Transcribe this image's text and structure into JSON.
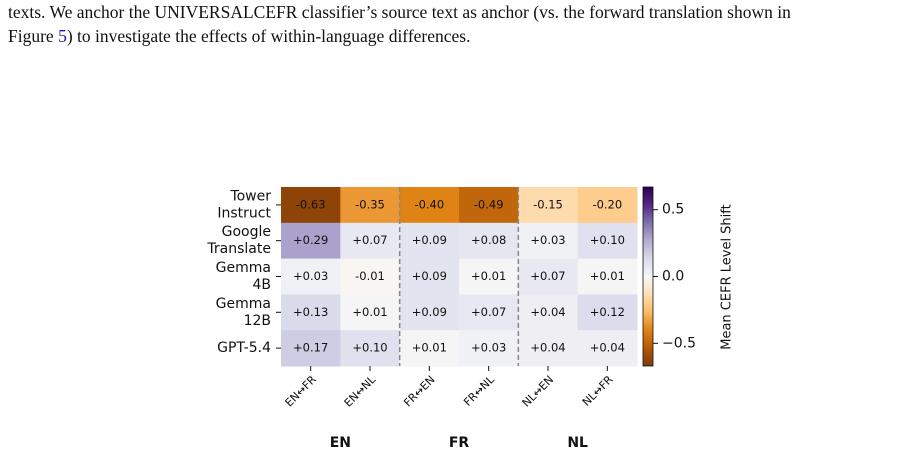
{
  "paragraph": {
    "line1": "texts. We anchor the UNIVERSALCEFR classifier’s source text as anchor (vs. the forward translation shown in",
    "line2_prefix": "Figure ",
    "line2_ref": "5",
    "line2_suffix": ") to investigate the effects of within-language differences."
  },
  "chart_data": {
    "type": "heatmap",
    "rows": [
      [
        "Tower",
        "Instruct"
      ],
      [
        "Google",
        "Translate"
      ],
      [
        "Gemma",
        "4B"
      ],
      [
        "Gemma",
        "12B"
      ],
      [
        "GPT-5.4"
      ]
    ],
    "columns": [
      "EN↔FR",
      "EN↔NL",
      "FR↔EN",
      "FR↔NL",
      "NL↔EN",
      "NL↔FR"
    ],
    "groups": [
      "EN",
      "FR",
      "NL"
    ],
    "values": [
      [
        -0.63,
        -0.35,
        -0.4,
        -0.49,
        -0.15,
        -0.2
      ],
      [
        0.29,
        0.07,
        0.09,
        0.08,
        0.03,
        0.1
      ],
      [
        0.03,
        -0.01,
        0.09,
        0.01,
        0.07,
        0.01
      ],
      [
        0.13,
        0.01,
        0.09,
        0.07,
        0.04,
        0.12
      ],
      [
        0.17,
        0.1,
        0.01,
        0.03,
        0.04,
        0.04
      ]
    ],
    "value_labels": [
      [
        "-0.63",
        "-0.35",
        "-0.40",
        "-0.49",
        "-0.15",
        "-0.20"
      ],
      [
        "+0.29",
        "+0.07",
        "+0.09",
        "+0.08",
        "+0.03",
        "+0.10"
      ],
      [
        "+0.03",
        "-0.01",
        "+0.09",
        "+0.01",
        "+0.07",
        "+0.01"
      ],
      [
        "+0.13",
        "+0.01",
        "+0.09",
        "+0.07",
        "+0.04",
        "+0.12"
      ],
      [
        "+0.17",
        "+0.10",
        "+0.01",
        "+0.03",
        "+0.04",
        "+0.04"
      ]
    ],
    "clim": [
      -0.67,
      0.67
    ],
    "cticks": [
      {
        "value": -0.5,
        "label": "−0.5"
      },
      {
        "value": 0,
        "label": "0.0"
      },
      0.5
    ],
    "colorbar_label": "Mean CEFR Level Shift",
    "colormap": [
      "#7f3b08",
      "#b35806",
      "#e08214",
      "#fdb863",
      "#fee0b6",
      "#f7f7f7",
      "#d8daeb",
      "#b2abd2",
      "#8073ac",
      "#542788",
      "#2d004b"
    ]
  }
}
